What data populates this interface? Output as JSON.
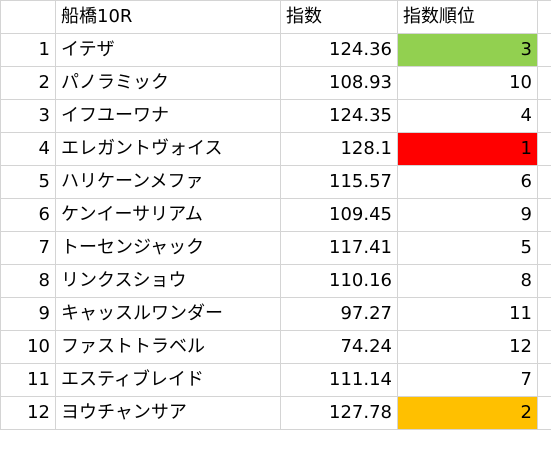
{
  "header": {
    "race": "船橋10R",
    "index": "指数",
    "rank": "指数順位"
  },
  "rows": [
    {
      "no": "1",
      "name": "イテザ",
      "index": "124.36",
      "rank": "3",
      "highlight": "#92d050"
    },
    {
      "no": "2",
      "name": "パノラミック",
      "index": "108.93",
      "rank": "10",
      "highlight": null
    },
    {
      "no": "3",
      "name": "イフユーワナ",
      "index": "124.35",
      "rank": "4",
      "highlight": null
    },
    {
      "no": "4",
      "name": "エレガントヴォイス",
      "index": "128.1",
      "rank": "1",
      "highlight": "#ff0000"
    },
    {
      "no": "5",
      "name": "ハリケーンメファ",
      "index": "115.57",
      "rank": "6",
      "highlight": null
    },
    {
      "no": "6",
      "name": "ケンイーサリアム",
      "index": "109.45",
      "rank": "9",
      "highlight": null
    },
    {
      "no": "7",
      "name": "トーセンジャック",
      "index": "117.41",
      "rank": "5",
      "highlight": null
    },
    {
      "no": "8",
      "name": "リンクスショウ",
      "index": "110.16",
      "rank": "8",
      "highlight": null
    },
    {
      "no": "9",
      "name": "キャッスルワンダー",
      "index": "97.27",
      "rank": "11",
      "highlight": null
    },
    {
      "no": "10",
      "name": "ファストトラベル",
      "index": "74.24",
      "rank": "12",
      "highlight": null
    },
    {
      "no": "11",
      "name": "エスティブレイド",
      "index": "111.14",
      "rank": "7",
      "highlight": null
    },
    {
      "no": "12",
      "name": "ヨウチャンサア",
      "index": "127.78",
      "rank": "2",
      "highlight": "#ffc000"
    }
  ],
  "colors": {
    "gridline": "#d4d4d4",
    "rank_1": "#ff0000",
    "rank_2": "#ffc000",
    "rank_3": "#92d050"
  }
}
